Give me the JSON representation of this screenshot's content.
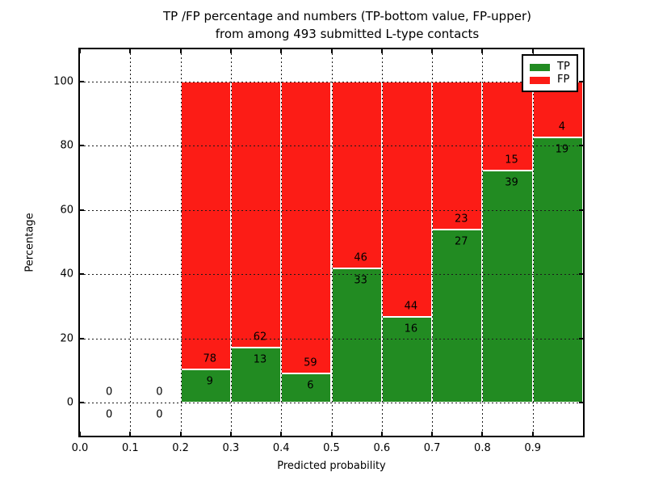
{
  "chart_data": {
    "type": "bar",
    "stacked": true,
    "normalized_to_percent": true,
    "title_line1": "TP /FP percentage and numbers (TP-bottom value, FP-upper)",
    "title_line2": "from among 493 submitted L-type contacts",
    "total_contacts": 493,
    "xlabel": "Predicted probability",
    "ylabel": "Percentage",
    "xlim": [
      0.0,
      1.0
    ],
    "ylim": [
      -10.2,
      110.0
    ],
    "grid": true,
    "grid_style": "dotted",
    "legend_position": "upper right",
    "x_ticks": [
      {
        "value": 0.0,
        "label": "0.0"
      },
      {
        "value": 0.1,
        "label": "0.1"
      },
      {
        "value": 0.2,
        "label": "0.2"
      },
      {
        "value": 0.3,
        "label": "0.3"
      },
      {
        "value": 0.4,
        "label": "0.4"
      },
      {
        "value": 0.5,
        "label": "0.5"
      },
      {
        "value": 0.6,
        "label": "0.6"
      },
      {
        "value": 0.7,
        "label": "0.7"
      },
      {
        "value": 0.8,
        "label": "0.8"
      },
      {
        "value": 0.9,
        "label": "0.9"
      }
    ],
    "y_ticks": [
      {
        "value": 0,
        "label": "0"
      },
      {
        "value": 20,
        "label": "20"
      },
      {
        "value": 40,
        "label": "40"
      },
      {
        "value": 60,
        "label": "60"
      },
      {
        "value": 80,
        "label": "80"
      },
      {
        "value": 100,
        "label": "100"
      }
    ],
    "bin_width": 0.1,
    "bins": [
      {
        "x0": 0.0,
        "tp": 0,
        "fp": 0
      },
      {
        "x0": 0.1,
        "tp": 0,
        "fp": 0
      },
      {
        "x0": 0.2,
        "tp": 9,
        "fp": 78
      },
      {
        "x0": 0.3,
        "tp": 13,
        "fp": 62
      },
      {
        "x0": 0.4,
        "tp": 6,
        "fp": 59
      },
      {
        "x0": 0.5,
        "tp": 33,
        "fp": 46
      },
      {
        "x0": 0.6,
        "tp": 16,
        "fp": 44
      },
      {
        "x0": 0.7,
        "tp": 27,
        "fp": 23
      },
      {
        "x0": 0.8,
        "tp": 39,
        "fp": 15
      },
      {
        "x0": 0.9,
        "tp": 19,
        "fp": 4
      }
    ],
    "series": [
      {
        "name": "TP",
        "color": "#228B22"
      },
      {
        "name": "FP",
        "color": "#FC1C16"
      }
    ]
  }
}
